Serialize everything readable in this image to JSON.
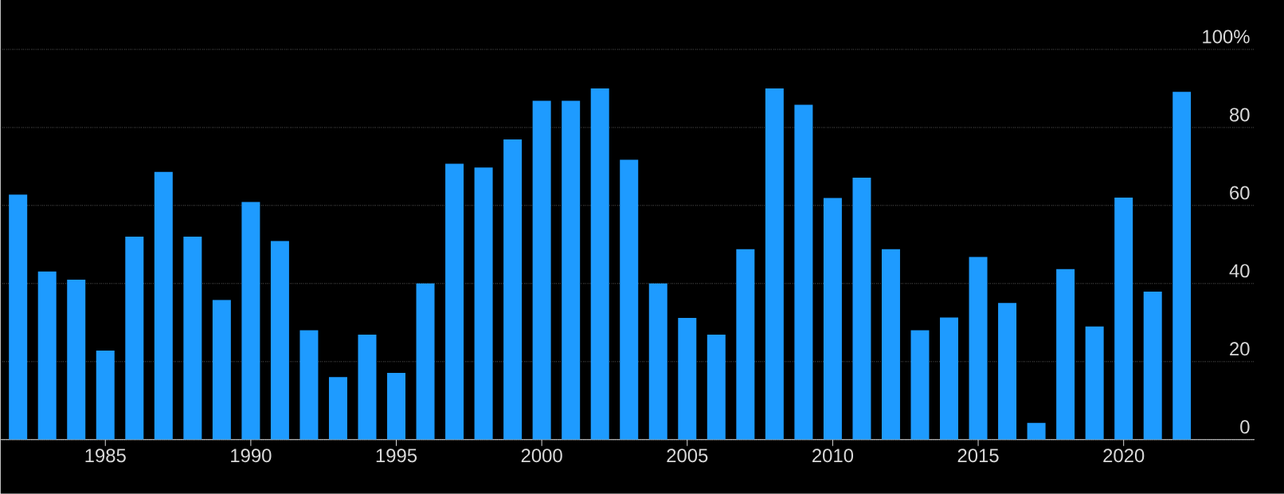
{
  "chart_data": {
    "type": "bar",
    "color": "#1e9bff",
    "grid": "y",
    "x": [
      1982,
      1983,
      1984,
      1985,
      1986,
      1987,
      1988,
      1989,
      1990,
      1991,
      1992,
      1993,
      1994,
      1995,
      1996,
      1997,
      1998,
      1999,
      2000,
      2001,
      2002,
      2003,
      2004,
      2005,
      2006,
      2007,
      2008,
      2009,
      2010,
      2011,
      2012,
      2013,
      2014,
      2015,
      2016,
      2017,
      2018,
      2019,
      2020,
      2021,
      2022
    ],
    "values": [
      62.8,
      43.1,
      41.0,
      22.8,
      52.0,
      68.6,
      52.0,
      35.8,
      60.9,
      50.9,
      28.0,
      16.0,
      26.9,
      17.1,
      40.0,
      70.7,
      69.7,
      76.9,
      86.8,
      86.8,
      90.0,
      71.7,
      40.0,
      31.2,
      26.9,
      48.8,
      90.0,
      85.8,
      61.9,
      67.1,
      48.8,
      28.0,
      31.3,
      46.8,
      35.0,
      4.3,
      43.7,
      29.0,
      62.0,
      37.9,
      89.1
    ],
    "xlim": [
      1981.4,
      2024.5
    ],
    "ylim": [
      0,
      100
    ],
    "xticks": [
      1985,
      1990,
      1995,
      2000,
      2005,
      2010,
      2015,
      2020
    ],
    "yticks": [
      0,
      20,
      40,
      60,
      80,
      {
        "value": 100,
        "label": "100%"
      }
    ]
  }
}
